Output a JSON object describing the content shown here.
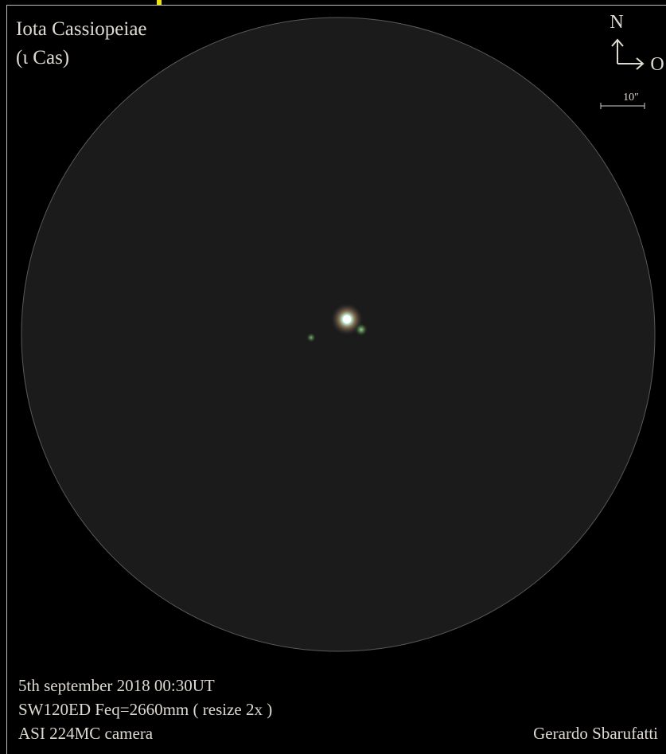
{
  "title": {
    "line1": "Iota Cassiopeiae",
    "line2": "(ι Cas)"
  },
  "compass": {
    "north": "N",
    "east": "O"
  },
  "scale": {
    "label": "10″"
  },
  "details": {
    "date": "5th september 2018  00:30UT",
    "telescope": "SW120ED Feq=2660mm ( resize 2x )",
    "camera": "ASI 224MC camera"
  },
  "credit": "Gerardo Sbarufatti"
}
